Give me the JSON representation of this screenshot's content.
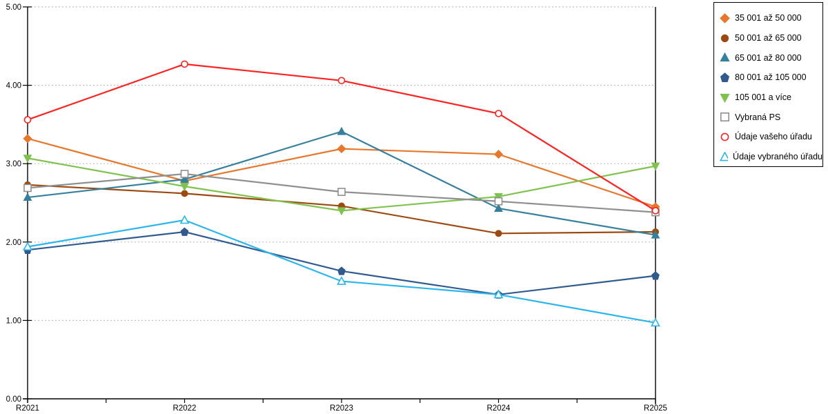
{
  "page": {
    "background": "#FFFFFF"
  },
  "chart_data": {
    "type": "line",
    "title": "",
    "xlabel": "",
    "ylabel": "",
    "categories": [
      "R2021",
      "R2022",
      "R2023",
      "R2024",
      "R2025"
    ],
    "series": [
      {
        "name": "35 001 až 50 000",
        "color": "#E8772B",
        "marker": "diamond",
        "marker_style": "filled",
        "values": [
          3.32,
          2.78,
          3.19,
          3.12,
          2.45
        ]
      },
      {
        "name": "50 001 až 65 000",
        "color": "#9C4A0F",
        "marker": "circle",
        "marker_style": "filled",
        "values": [
          2.73,
          2.62,
          2.46,
          2.11,
          2.13
        ]
      },
      {
        "name": "65 001 až 80 000",
        "color": "#35809C",
        "marker": "triangle",
        "marker_style": "filled",
        "values": [
          2.57,
          2.8,
          3.41,
          2.43,
          2.09
        ]
      },
      {
        "name": "80 001 až 105 000",
        "color": "#2F5B8E",
        "marker": "pentagon",
        "marker_style": "filled",
        "values": [
          1.9,
          2.13,
          1.63,
          1.33,
          1.57
        ]
      },
      {
        "name": "105 001 a více",
        "color": "#7FC24E",
        "marker": "triangle-down",
        "marker_style": "filled",
        "values": [
          3.07,
          2.71,
          2.4,
          2.58,
          2.97
        ]
      },
      {
        "name": "Vybraná PS",
        "color": "#8F8F8F",
        "marker": "square",
        "marker_style": "open",
        "values": [
          2.69,
          2.87,
          2.64,
          2.52,
          2.38
        ]
      },
      {
        "name": "Údaje vašeho úřadu",
        "color": "#FF2020",
        "marker": "circle",
        "marker_style": "open",
        "values": [
          3.56,
          4.27,
          4.06,
          3.64,
          2.4
        ]
      },
      {
        "name": "Údaje vybraného úřadu",
        "color": "#29B6EC",
        "marker": "triangle",
        "marker_style": "open",
        "values": [
          1.94,
          2.28,
          1.5,
          1.33,
          0.97
        ]
      }
    ],
    "ylim": [
      0,
      5
    ],
    "ytick_step": 1,
    "ytick_labels": [
      "0.00",
      "1.00",
      "2.00",
      "3.00",
      "4.00",
      "5.00"
    ],
    "grid": {
      "horizontal": "dotted",
      "color": "#BFBFBF"
    },
    "axis_color": "#000000",
    "tick_label_color": "#000000",
    "legend": {
      "position": "top-right",
      "border_color": "#000000",
      "background": "#FFFFFF"
    }
  }
}
